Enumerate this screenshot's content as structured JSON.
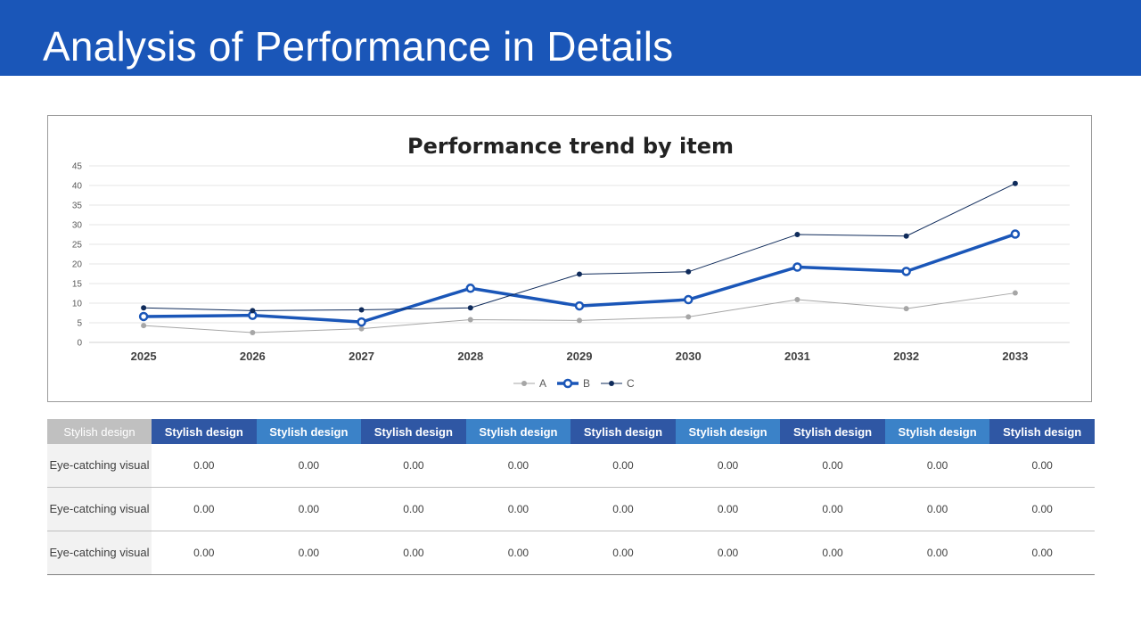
{
  "page": {
    "title": "Analysis of Performance in Details"
  },
  "chart_data": {
    "type": "line",
    "title": "Performance trend by item",
    "xlabel": "",
    "ylabel": "",
    "categories": [
      "2025",
      "2026",
      "2027",
      "2028",
      "2029",
      "2030",
      "2031",
      "2032",
      "2033"
    ],
    "ylim": [
      0,
      45
    ],
    "yticks": [
      0,
      5,
      10,
      15,
      20,
      25,
      30,
      35,
      40,
      45
    ],
    "grid": true,
    "legend": "bottom",
    "series": [
      {
        "name": "A",
        "color": "#a6a6a6",
        "values": [
          4.3,
          2.5,
          3.5,
          5.8,
          5.6,
          6.5,
          10.9,
          8.6,
          12.6
        ]
      },
      {
        "name": "B",
        "color": "#1a56b8",
        "values": [
          6.6,
          6.9,
          5.2,
          13.8,
          9.3,
          10.9,
          19.2,
          18.1,
          27.6
        ]
      },
      {
        "name": "C",
        "color": "#0f2b5b",
        "values": [
          8.8,
          8.1,
          8.3,
          8.8,
          17.4,
          18.0,
          27.5,
          27.1,
          40.5
        ]
      }
    ]
  },
  "table": {
    "headers": [
      "Stylish design",
      "Stylish design",
      "Stylish design",
      "Stylish design",
      "Stylish design",
      "Stylish design",
      "Stylish design",
      "Stylish design",
      "Stylish design",
      "Stylish design"
    ],
    "rows": [
      {
        "label": "Eye-catching visual",
        "values": [
          "0.00",
          "0.00",
          "0.00",
          "0.00",
          "0.00",
          "0.00",
          "0.00",
          "0.00",
          "0.00"
        ]
      },
      {
        "label": "Eye-catching visual",
        "values": [
          "0.00",
          "0.00",
          "0.00",
          "0.00",
          "0.00",
          "0.00",
          "0.00",
          "0.00",
          "0.00"
        ]
      },
      {
        "label": "Eye-catching visual",
        "values": [
          "0.00",
          "0.00",
          "0.00",
          "0.00",
          "0.00",
          "0.00",
          "0.00",
          "0.00",
          "0.00"
        ]
      }
    ]
  }
}
